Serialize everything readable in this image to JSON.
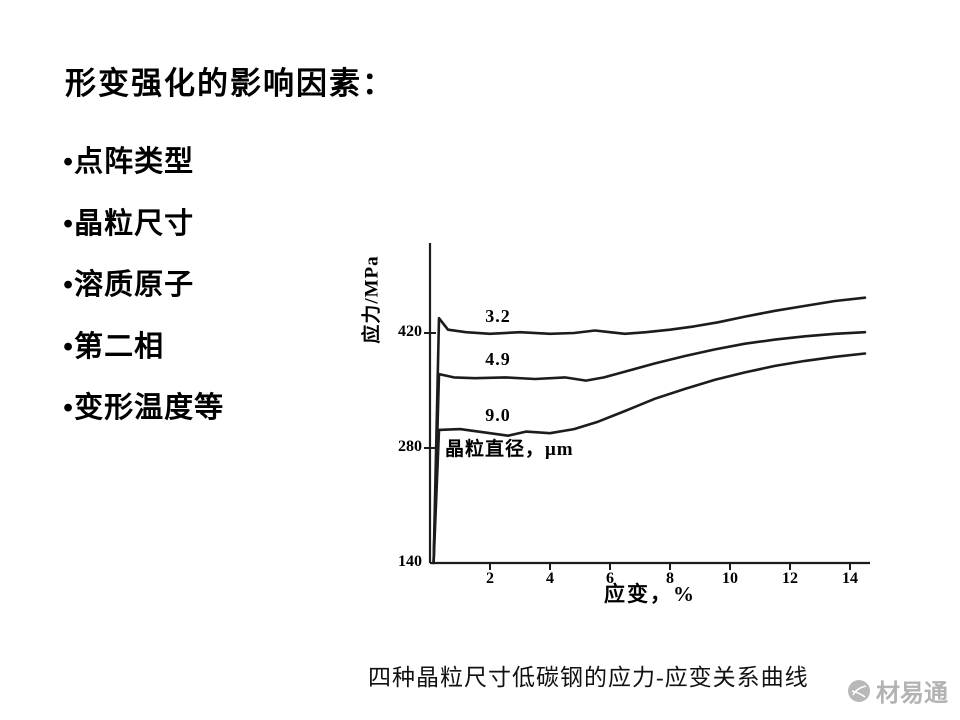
{
  "slide": {
    "title": "形变强化的影响因素：",
    "bullets": [
      "•点阵类型",
      "•晶粒尺寸",
      "•溶质原子",
      "•第二相",
      "•变形温度等"
    ],
    "caption": "四种晶粒尺寸低碳钢的应力-应变关系曲线",
    "watermark": "材易通"
  },
  "chart_data": {
    "type": "line",
    "title": "四种晶粒尺寸低碳钢的应力-应变关系曲线",
    "xlabel": "应变，%",
    "ylabel": "应力/MPa",
    "annotation": "晶粒直径，μm",
    "x_ticks": [
      2,
      4,
      6,
      8,
      10,
      12,
      14
    ],
    "y_ticks": [
      420,
      280,
      140
    ],
    "xlim": [
      0,
      15
    ],
    "ylim": [
      140,
      480
    ],
    "grid": false,
    "legend_position": "inline-labels",
    "line_color": "#1c1c1c",
    "series": [
      {
        "name": "3.2",
        "x": [
          0.12,
          0.3,
          0.6,
          1.2,
          2,
          3,
          4,
          4.8,
          5.5,
          6,
          6.5,
          7.2,
          8,
          8.8,
          9.6,
          10.5,
          11.5,
          12.5,
          13.5,
          14.5
        ],
        "y": [
          140,
          438,
          424,
          421,
          419,
          421,
          419,
          420,
          423,
          421,
          419,
          421,
          424,
          428,
          433,
          440,
          447,
          453,
          459,
          463
        ]
      },
      {
        "name": "4.9",
        "x": [
          0.12,
          0.3,
          0.8,
          1.5,
          2.5,
          3.5,
          4.5,
          5.2,
          5.8,
          6.5,
          7.5,
          8.5,
          9.5,
          10.5,
          11.5,
          12.5,
          13.5,
          14.5
        ],
        "y": [
          140,
          370,
          366,
          365,
          366,
          364,
          366,
          362,
          366,
          373,
          383,
          392,
          400,
          407,
          412,
          416,
          419,
          421
        ]
      },
      {
        "name": "9.0",
        "x": [
          0.12,
          0.3,
          1,
          2,
          2.6,
          3.2,
          4,
          4.8,
          5.6,
          6.5,
          7.5,
          8.5,
          9.5,
          10.5,
          11.5,
          12.5,
          13.5,
          14.5
        ],
        "y": [
          140,
          302,
          303,
          298,
          295,
          300,
          298,
          303,
          312,
          325,
          340,
          352,
          363,
          372,
          380,
          386,
          391,
          395
        ]
      }
    ]
  }
}
